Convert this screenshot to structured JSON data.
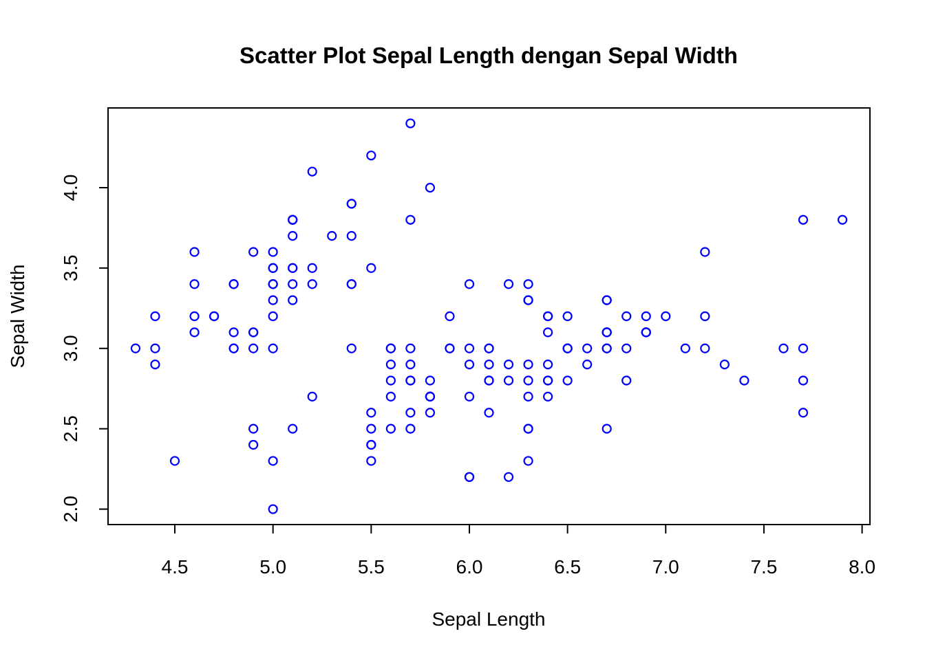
{
  "chart_data": {
    "type": "scatter",
    "title": "Scatter Plot Sepal Length dengan Sepal Width",
    "xlabel": "Sepal Length",
    "ylabel": "Sepal Width",
    "xlim": [
      4.16,
      8.04
    ],
    "ylim": [
      1.904,
      4.496
    ],
    "xticks": [
      4.5,
      5.0,
      5.5,
      6.0,
      6.5,
      7.0,
      7.5,
      8.0
    ],
    "xtick_labels": [
      "4.5",
      "5.0",
      "5.5",
      "6.0",
      "6.5",
      "7.0",
      "7.5",
      "8.0"
    ],
    "yticks": [
      2.0,
      2.5,
      3.0,
      3.5,
      4.0
    ],
    "ytick_labels": [
      "2.0",
      "2.5",
      "3.0",
      "3.5",
      "4.0"
    ],
    "grid": false,
    "marker": "open-circle",
    "point_color": "#0000FF",
    "points": [
      [
        5.1,
        3.5
      ],
      [
        4.9,
        3.0
      ],
      [
        4.7,
        3.2
      ],
      [
        4.6,
        3.1
      ],
      [
        5.0,
        3.6
      ],
      [
        5.4,
        3.9
      ],
      [
        4.6,
        3.4
      ],
      [
        5.0,
        3.4
      ],
      [
        4.4,
        2.9
      ],
      [
        4.9,
        3.1
      ],
      [
        5.4,
        3.7
      ],
      [
        4.8,
        3.4
      ],
      [
        4.8,
        3.0
      ],
      [
        4.3,
        3.0
      ],
      [
        5.8,
        4.0
      ],
      [
        5.7,
        4.4
      ],
      [
        5.4,
        3.9
      ],
      [
        5.1,
        3.5
      ],
      [
        5.7,
        3.8
      ],
      [
        5.1,
        3.8
      ],
      [
        5.4,
        3.4
      ],
      [
        5.1,
        3.7
      ],
      [
        4.6,
        3.6
      ],
      [
        5.1,
        3.3
      ],
      [
        4.8,
        3.4
      ],
      [
        5.0,
        3.0
      ],
      [
        5.0,
        3.4
      ],
      [
        5.2,
        3.5
      ],
      [
        5.2,
        3.4
      ],
      [
        4.7,
        3.2
      ],
      [
        4.8,
        3.1
      ],
      [
        5.4,
        3.4
      ],
      [
        5.2,
        4.1
      ],
      [
        5.5,
        4.2
      ],
      [
        4.9,
        3.1
      ],
      [
        5.0,
        3.2
      ],
      [
        5.5,
        3.5
      ],
      [
        4.9,
        3.6
      ],
      [
        4.4,
        3.0
      ],
      [
        5.1,
        3.4
      ],
      [
        5.0,
        3.5
      ],
      [
        4.5,
        2.3
      ],
      [
        4.4,
        3.2
      ],
      [
        5.0,
        3.5
      ],
      [
        5.1,
        3.8
      ],
      [
        4.8,
        3.0
      ],
      [
        5.1,
        3.8
      ],
      [
        4.6,
        3.2
      ],
      [
        5.3,
        3.7
      ],
      [
        5.0,
        3.3
      ],
      [
        7.0,
        3.2
      ],
      [
        6.4,
        3.2
      ],
      [
        6.9,
        3.1
      ],
      [
        5.5,
        2.3
      ],
      [
        6.5,
        2.8
      ],
      [
        5.7,
        2.8
      ],
      [
        6.3,
        3.3
      ],
      [
        4.9,
        2.4
      ],
      [
        6.6,
        2.9
      ],
      [
        5.2,
        2.7
      ],
      [
        5.0,
        2.0
      ],
      [
        5.9,
        3.0
      ],
      [
        6.0,
        2.2
      ],
      [
        6.1,
        2.9
      ],
      [
        5.6,
        2.9
      ],
      [
        6.7,
        3.1
      ],
      [
        5.6,
        3.0
      ],
      [
        5.8,
        2.7
      ],
      [
        6.2,
        2.2
      ],
      [
        5.6,
        2.5
      ],
      [
        5.9,
        3.2
      ],
      [
        6.1,
        2.8
      ],
      [
        6.3,
        2.5
      ],
      [
        6.1,
        2.8
      ],
      [
        6.4,
        2.9
      ],
      [
        6.6,
        3.0
      ],
      [
        6.8,
        2.8
      ],
      [
        6.7,
        3.0
      ],
      [
        6.0,
        2.9
      ],
      [
        5.7,
        2.6
      ],
      [
        5.5,
        2.4
      ],
      [
        5.5,
        2.4
      ],
      [
        5.8,
        2.7
      ],
      [
        6.0,
        2.7
      ],
      [
        5.4,
        3.0
      ],
      [
        6.0,
        3.4
      ],
      [
        6.7,
        3.1
      ],
      [
        6.3,
        2.3
      ],
      [
        5.6,
        3.0
      ],
      [
        5.5,
        2.5
      ],
      [
        5.5,
        2.6
      ],
      [
        6.1,
        3.0
      ],
      [
        5.8,
        2.6
      ],
      [
        5.0,
        2.3
      ],
      [
        5.6,
        2.7
      ],
      [
        5.7,
        3.0
      ],
      [
        5.7,
        2.9
      ],
      [
        6.2,
        2.9
      ],
      [
        5.1,
        2.5
      ],
      [
        5.7,
        2.8
      ],
      [
        6.3,
        3.3
      ],
      [
        5.8,
        2.7
      ],
      [
        7.1,
        3.0
      ],
      [
        6.3,
        2.9
      ],
      [
        6.5,
        3.0
      ],
      [
        7.6,
        3.0
      ],
      [
        4.9,
        2.5
      ],
      [
        7.3,
        2.9
      ],
      [
        6.7,
        2.5
      ],
      [
        7.2,
        3.6
      ],
      [
        6.5,
        3.2
      ],
      [
        6.4,
        2.7
      ],
      [
        6.8,
        3.0
      ],
      [
        5.7,
        2.5
      ],
      [
        5.8,
        2.8
      ],
      [
        6.4,
        3.2
      ],
      [
        6.5,
        3.0
      ],
      [
        7.7,
        3.8
      ],
      [
        7.7,
        2.6
      ],
      [
        6.0,
        2.2
      ],
      [
        6.9,
        3.2
      ],
      [
        5.6,
        2.8
      ],
      [
        7.7,
        2.8
      ],
      [
        6.3,
        2.7
      ],
      [
        6.7,
        3.3
      ],
      [
        7.2,
        3.2
      ],
      [
        6.2,
        2.8
      ],
      [
        6.1,
        3.0
      ],
      [
        6.4,
        2.8
      ],
      [
        7.2,
        3.0
      ],
      [
        7.4,
        2.8
      ],
      [
        7.9,
        3.8
      ],
      [
        6.4,
        2.8
      ],
      [
        6.3,
        2.8
      ],
      [
        6.1,
        2.6
      ],
      [
        7.7,
        3.0
      ],
      [
        6.3,
        3.4
      ],
      [
        6.4,
        3.1
      ],
      [
        6.0,
        3.0
      ],
      [
        6.9,
        3.1
      ],
      [
        6.7,
        3.1
      ],
      [
        6.9,
        3.1
      ],
      [
        5.8,
        2.7
      ],
      [
        6.8,
        3.2
      ],
      [
        6.7,
        3.3
      ],
      [
        6.7,
        3.0
      ],
      [
        6.3,
        2.5
      ],
      [
        6.5,
        3.0
      ],
      [
        6.2,
        3.4
      ],
      [
        5.9,
        3.0
      ]
    ]
  }
}
